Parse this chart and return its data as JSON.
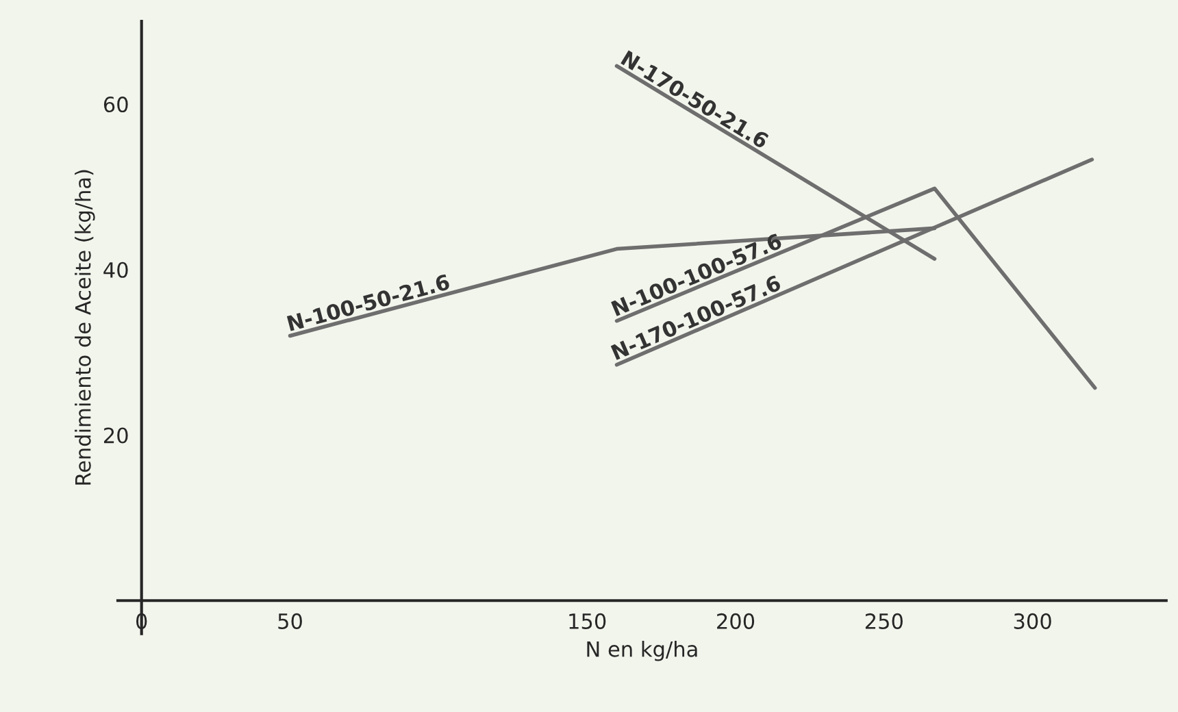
{
  "chart_data": {
    "type": "line",
    "xlabel": "N en kg/ha",
    "ylabel": "Rendimiento de Aceite (kg/ha)",
    "xlim": [
      -8,
      345
    ],
    "ylim": [
      -4,
      70
    ],
    "xticks": [
      0,
      50,
      150,
      200,
      250,
      300
    ],
    "yticks": [
      20,
      40,
      60
    ],
    "grid": false,
    "legend": false,
    "marker": "none",
    "line_style": "solid",
    "series": [
      {
        "name": "N-100-50-21.6",
        "color": "#6e6e6e",
        "x": [
          50,
          160,
          267
        ],
        "values": [
          32,
          42.5,
          45
        ]
      },
      {
        "name": "N-170-50-21.6",
        "color": "#6e6e6e",
        "x": [
          160,
          267
        ],
        "values": [
          64.6,
          41.3
        ]
      },
      {
        "name": "N-100-100-57.6",
        "color": "#6e6e6e",
        "x": [
          160,
          267,
          321
        ],
        "values": [
          33.8,
          49.8,
          25.7
        ]
      },
      {
        "name": "N-170-100-57.6",
        "color": "#6e6e6e",
        "x": [
          160,
          320
        ],
        "values": [
          28.5,
          53.3
        ]
      }
    ]
  }
}
